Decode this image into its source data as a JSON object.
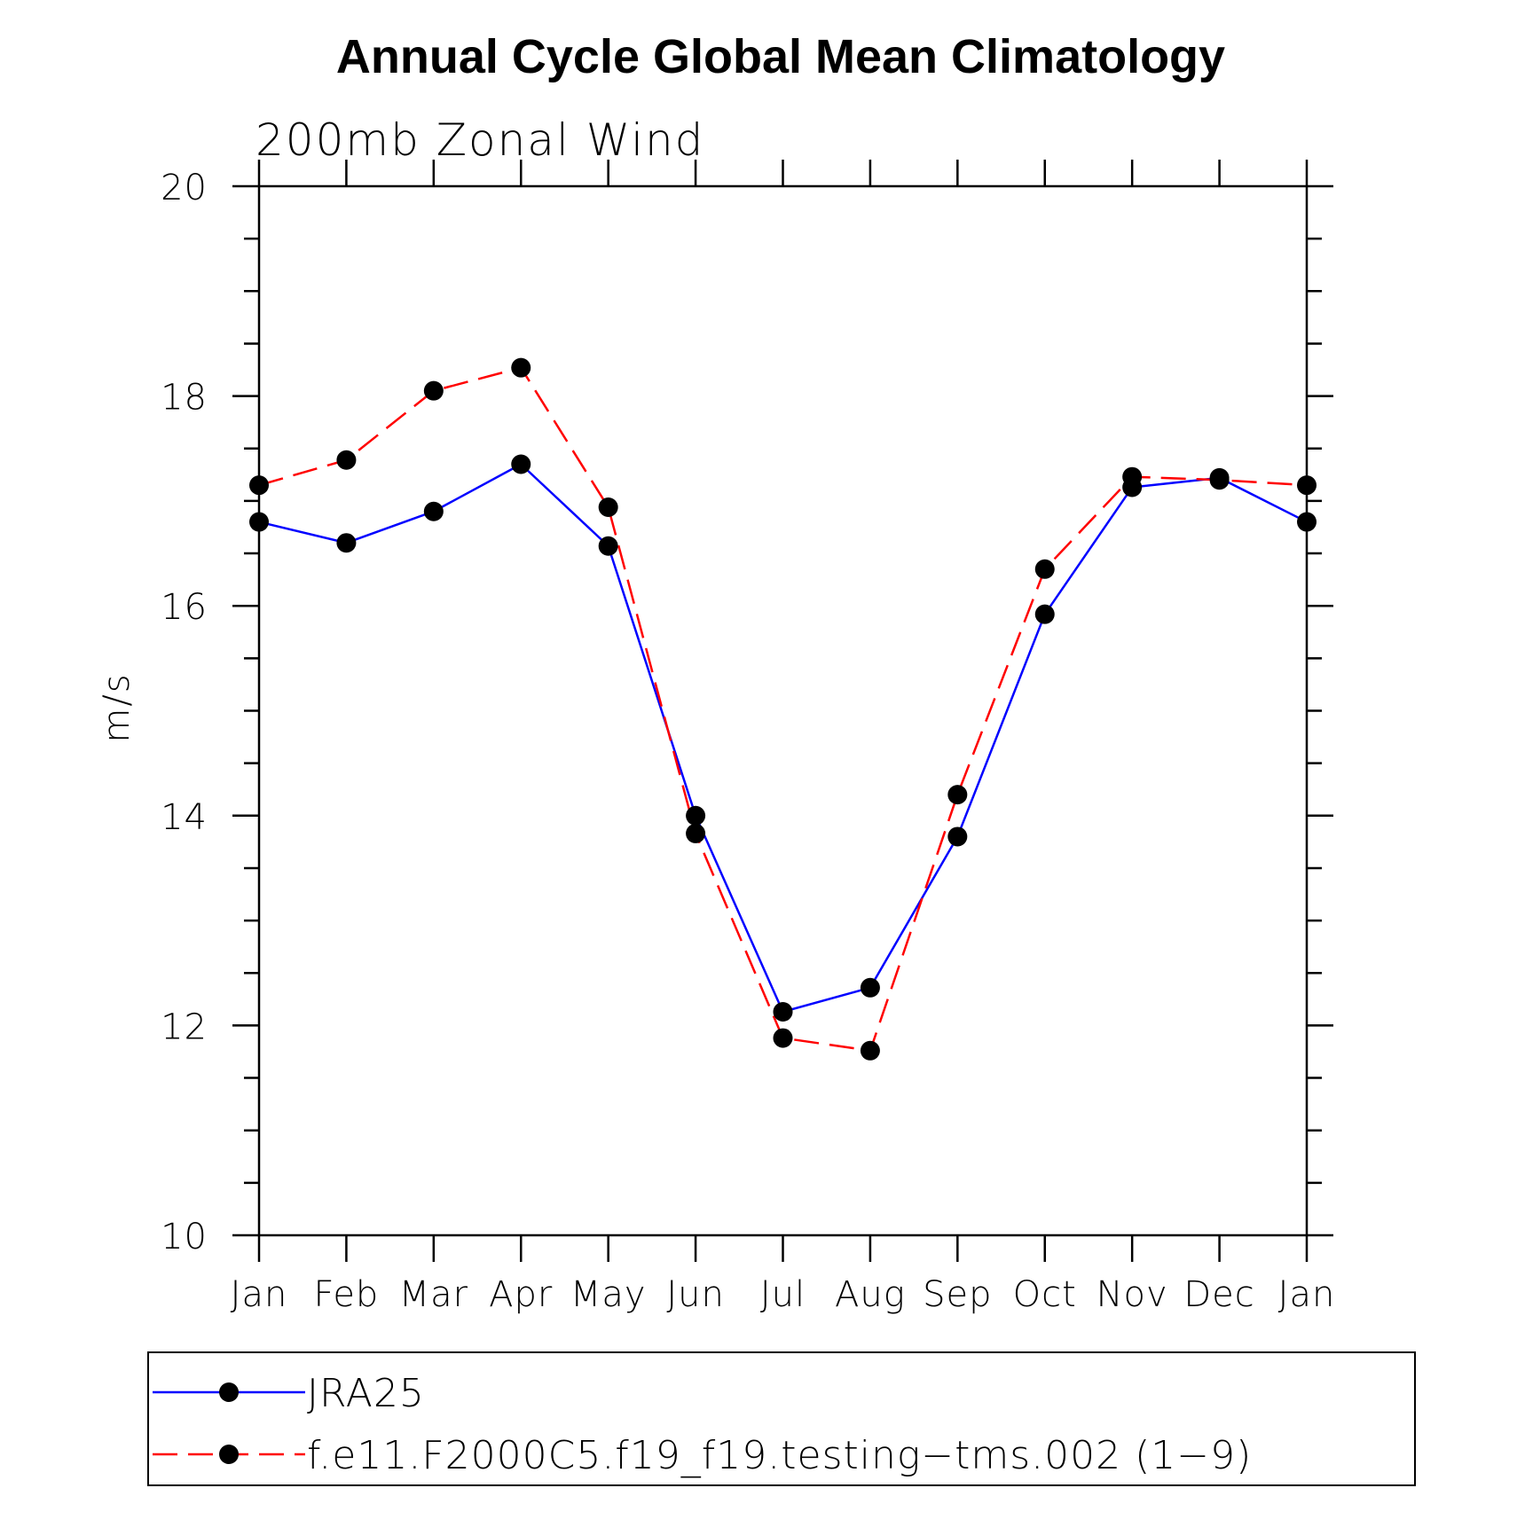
{
  "chart_data": {
    "type": "line",
    "title": "Annual Cycle Global Mean Climatology",
    "subtitle": "200mb Zonal Wind",
    "xlabel": "",
    "ylabel": "m/s",
    "categories": [
      "Jan",
      "Feb",
      "Mar",
      "Apr",
      "May",
      "Jun",
      "Jul",
      "Aug",
      "Sep",
      "Oct",
      "Nov",
      "Dec",
      "Jan"
    ],
    "ylim": [
      10,
      20
    ],
    "yticks_major": [
      10,
      12,
      14,
      16,
      18,
      20
    ],
    "yticks_minor_step": 0.5,
    "grid": false,
    "legend_position": "bottom",
    "series": [
      {
        "name": "JRA25",
        "color": "#0000ff",
        "dash": "solid",
        "marker": "filled-circle",
        "values": [
          16.8,
          16.6,
          16.9,
          17.35,
          16.57,
          14.0,
          12.13,
          12.36,
          13.8,
          15.92,
          17.13,
          17.22,
          16.8
        ]
      },
      {
        "name": "f.e11.F2000C5.f19_f19.testing−tms.002 (1−9)",
        "color": "#ff0000",
        "dash": "dashed",
        "marker": "filled-circle",
        "values": [
          17.15,
          17.39,
          18.05,
          18.27,
          16.94,
          13.83,
          11.88,
          11.76,
          14.2,
          16.35,
          17.23,
          17.2,
          17.15
        ]
      }
    ]
  }
}
